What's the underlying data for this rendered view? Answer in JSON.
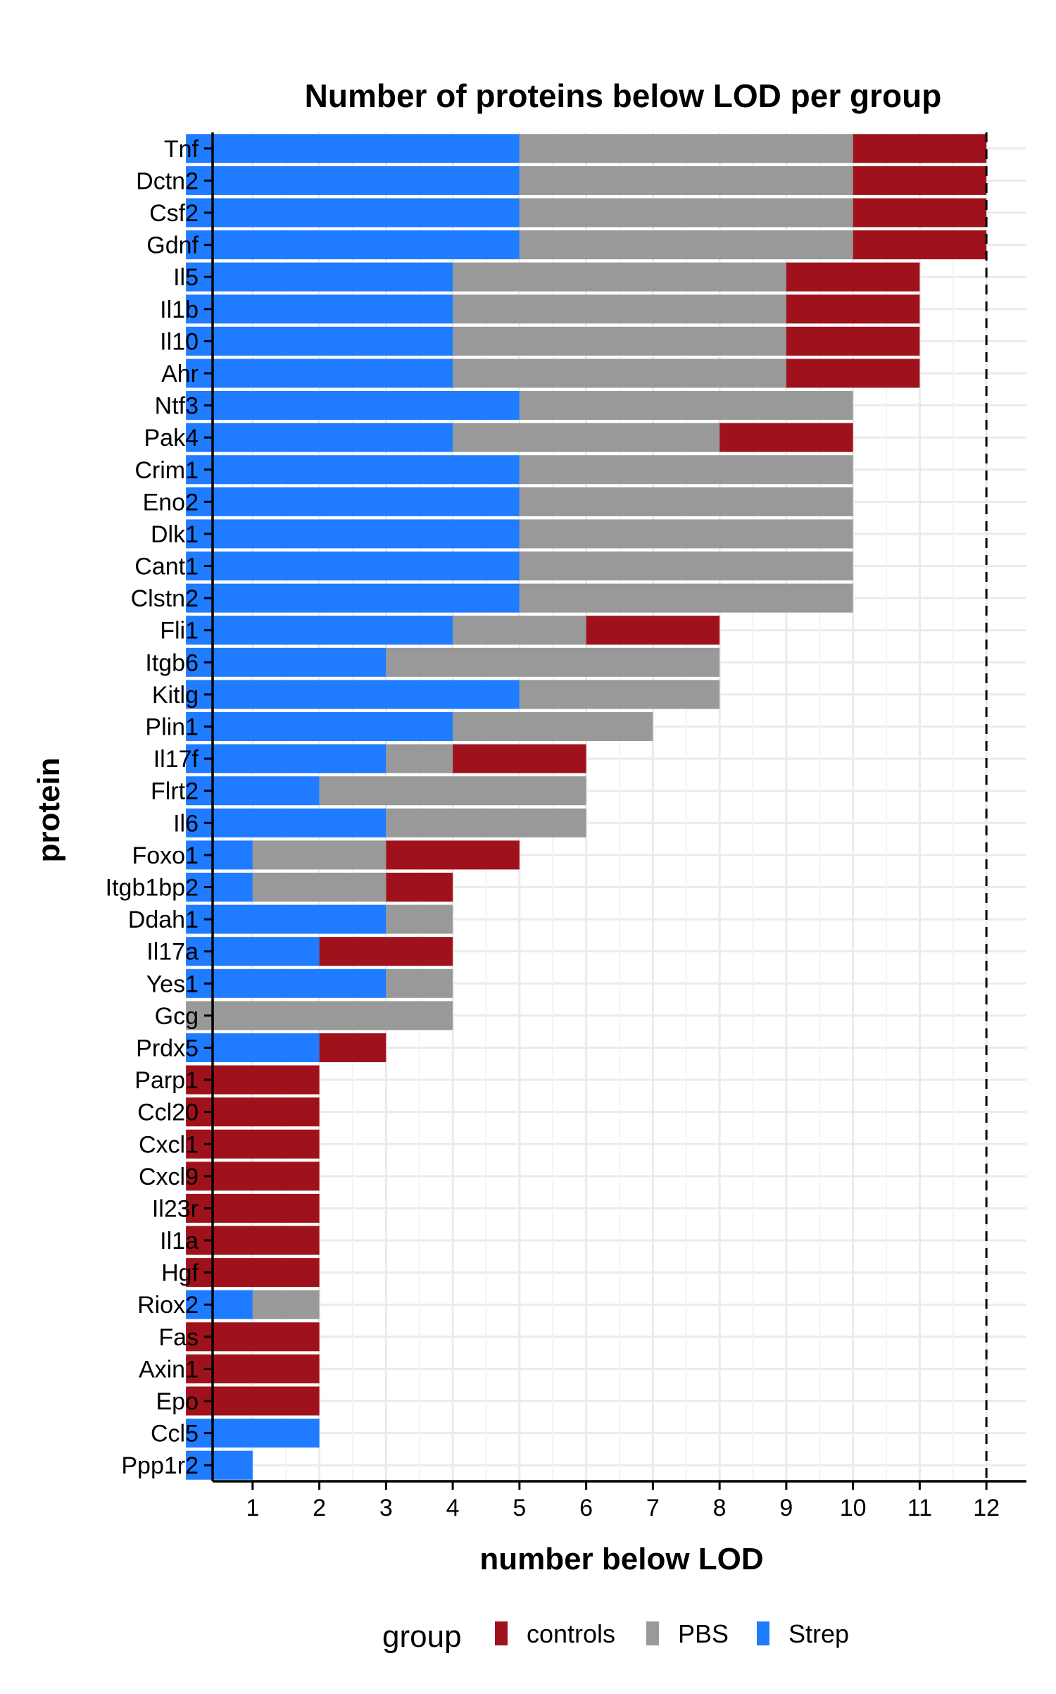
{
  "chart_data": {
    "type": "bar",
    "orientation": "horizontal",
    "stacked": true,
    "title": "Number of proteins below LOD per group",
    "xlabel": "number below LOD",
    "ylabel": "protein",
    "xlim": [
      0.4,
      12.6
    ],
    "xticks": [
      1,
      2,
      3,
      4,
      5,
      6,
      7,
      8,
      9,
      10,
      11,
      12
    ],
    "reference_line": {
      "x": 12,
      "style": "dashed"
    },
    "grid": true,
    "legend": {
      "title": "group",
      "position": "bottom"
    },
    "categories": [
      "Tnf",
      "Dctn2",
      "Csf2",
      "Gdnf",
      "Il5",
      "Il1b",
      "Il10",
      "Ahr",
      "Ntf3",
      "Pak4",
      "Crim1",
      "Eno2",
      "Dlk1",
      "Cant1",
      "Clstn2",
      "Fli1",
      "Itgb6",
      "Kitlg",
      "Plin1",
      "Il17f",
      "Flrt2",
      "Il6",
      "Foxo1",
      "Itgb1bp2",
      "Ddah1",
      "Il17a",
      "Yes1",
      "Gcg",
      "Prdx5",
      "Parp1",
      "Ccl20",
      "Cxcl1",
      "Cxcl9",
      "Il23r",
      "Il1a",
      "Hgf",
      "Riox2",
      "Fas",
      "Axin1",
      "Epo",
      "Ccl5",
      "Ppp1r2"
    ],
    "series": [
      {
        "name": "Strep",
        "color": "#1f7bff",
        "values": [
          5,
          5,
          5,
          5,
          4,
          4,
          4,
          4,
          5,
          4,
          5,
          5,
          5,
          5,
          5,
          4,
          3,
          5,
          4,
          3,
          2,
          3,
          1,
          1,
          3,
          2,
          3,
          0,
          2,
          0,
          0,
          0,
          0,
          0,
          0,
          0,
          1,
          0,
          0,
          0,
          2,
          1
        ]
      },
      {
        "name": "PBS",
        "color": "#999999",
        "values": [
          5,
          5,
          5,
          5,
          5,
          5,
          5,
          5,
          5,
          4,
          5,
          5,
          5,
          5,
          5,
          2,
          5,
          3,
          3,
          1,
          4,
          3,
          2,
          2,
          1,
          0,
          1,
          4,
          0,
          0,
          0,
          0,
          0,
          0,
          0,
          0,
          1,
          0,
          0,
          0,
          0,
          0
        ]
      },
      {
        "name": "controls",
        "color": "#a0121b",
        "values": [
          2,
          2,
          2,
          2,
          2,
          2,
          2,
          2,
          0,
          2,
          0,
          0,
          0,
          0,
          0,
          2,
          0,
          0,
          0,
          2,
          0,
          0,
          2,
          1,
          0,
          2,
          0,
          0,
          1,
          2,
          2,
          2,
          2,
          2,
          2,
          2,
          0,
          2,
          2,
          2,
          0,
          0
        ]
      }
    ],
    "legend_order": [
      "controls",
      "PBS",
      "Strep"
    ]
  }
}
